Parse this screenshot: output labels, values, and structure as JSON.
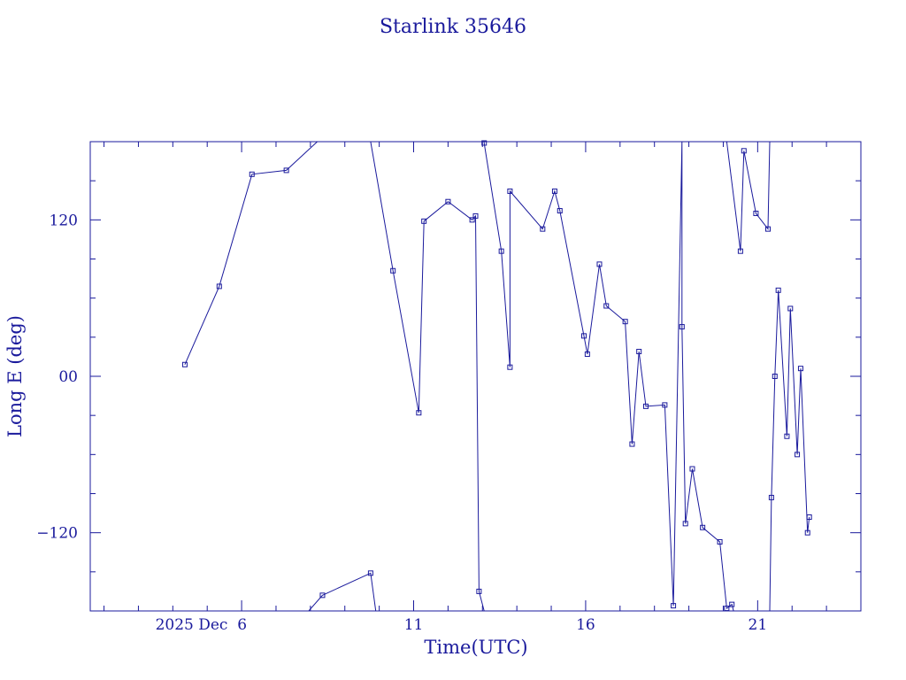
{
  "colors": {
    "ink": "#1a1a9c",
    "background": "#ffffff"
  },
  "chart_data": {
    "type": "line",
    "title": "Starlink 35646",
    "xlabel": "Time(UTC)",
    "ylabel": "Long E (deg)",
    "x_unit": "days of December 2025 (UTC)",
    "xlim": [
      1.6,
      24.0
    ],
    "ylim": [
      -180,
      180
    ],
    "wrap_longitude": true,
    "grid": false,
    "legend": "none",
    "marker": "open-square",
    "x_ticks": [
      {
        "value": 6,
        "label": "2025 Dec  6"
      },
      {
        "value": 11,
        "label": "11"
      },
      {
        "value": 16,
        "label": "16"
      },
      {
        "value": 21,
        "label": "21"
      }
    ],
    "y_ticks": [
      {
        "value": 120,
        "label": "120"
      },
      {
        "value": 0,
        "label": "00"
      },
      {
        "value": -120,
        "label": "−120"
      }
    ],
    "series": [
      {
        "points": [
          [
            4.35,
            9
          ],
          [
            5.35,
            69
          ],
          [
            6.3,
            155
          ],
          [
            7.3,
            158
          ],
          [
            8.2,
            180
          ],
          [
            7.95,
            -180
          ],
          [
            8.35,
            -168
          ],
          [
            9.75,
            -151
          ],
          [
            9.9,
            -180
          ],
          [
            9.75,
            180
          ],
          [
            10.4,
            81
          ],
          [
            11.15,
            -28
          ],
          [
            11.3,
            119
          ],
          [
            12.0,
            134
          ],
          [
            12.7,
            120
          ],
          [
            12.8,
            123
          ],
          [
            12.9,
            -165
          ],
          [
            13.05,
            -180
          ],
          [
            13.05,
            180
          ],
          [
            13.05,
            179
          ],
          [
            13.55,
            96
          ],
          [
            13.8,
            7
          ],
          [
            13.8,
            142
          ],
          [
            14.75,
            113
          ],
          [
            15.1,
            142
          ],
          [
            15.25,
            127
          ],
          [
            15.95,
            31
          ],
          [
            16.05,
            17
          ],
          [
            16.4,
            86
          ],
          [
            16.6,
            54
          ],
          [
            17.15,
            42
          ],
          [
            17.35,
            -52
          ],
          [
            17.55,
            19
          ],
          [
            17.75,
            -23
          ],
          [
            18.3,
            -22
          ],
          [
            18.55,
            -176
          ],
          [
            18.8,
            180
          ],
          [
            18.8,
            38
          ],
          [
            18.9,
            -113
          ],
          [
            19.1,
            -71
          ],
          [
            19.4,
            -116
          ],
          [
            19.9,
            -127
          ],
          [
            20.1,
            -178
          ],
          [
            20.25,
            -175
          ],
          [
            20.3,
            -180
          ],
          [
            20.1,
            180
          ],
          [
            20.5,
            96
          ],
          [
            20.6,
            173
          ],
          [
            20.95,
            125
          ],
          [
            21.3,
            113
          ],
          [
            21.35,
            180
          ],
          [
            21.35,
            -180
          ],
          [
            21.4,
            -93
          ],
          [
            21.5,
            0
          ],
          [
            21.6,
            66
          ],
          [
            21.85,
            -46
          ],
          [
            21.95,
            52
          ],
          [
            22.15,
            -60
          ],
          [
            22.25,
            6
          ],
          [
            22.45,
            -120
          ],
          [
            22.5,
            -108
          ]
        ]
      }
    ]
  }
}
